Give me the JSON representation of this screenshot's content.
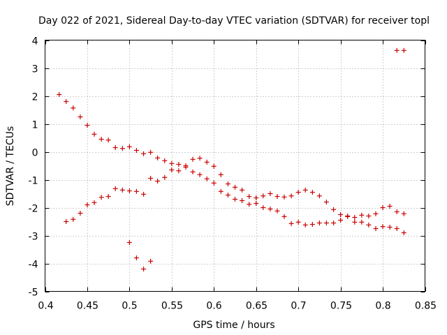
{
  "chart_data": {
    "type": "scatter",
    "title": "Day 022 of 2021, Sidereal Day-to-day VTEC variation (SDTVAR) for receiver topl",
    "xlabel": "GPS time / hours",
    "ylabel": "SDTVAR / TECUs",
    "xlim": [
      0.4,
      0.85
    ],
    "ylim": [
      -5,
      4
    ],
    "grid": true,
    "legend": "none",
    "marker": "plus",
    "color": "#cc0000",
    "xticks": [
      0.4,
      0.45,
      0.5,
      0.55,
      0.6,
      0.65,
      0.7,
      0.75,
      0.8,
      0.85
    ],
    "xtick_labels": [
      "0.4",
      "0.45",
      "0.5",
      "0.55",
      "0.6",
      "0.65",
      "0.7",
      "0.75",
      "0.8",
      "0.85"
    ],
    "yticks": [
      -5,
      -4,
      -3,
      -2,
      -1,
      0,
      1,
      2,
      3,
      4
    ],
    "ytick_labels": [
      "-5",
      "-4",
      "-3",
      "-2",
      "-1",
      "0",
      "1",
      "2",
      "3",
      "4"
    ],
    "series": [
      {
        "name": "SDTVAR",
        "points": [
          [
            0.4167,
            2.05
          ],
          [
            0.425,
            1.8
          ],
          [
            0.4333,
            1.57
          ],
          [
            0.4417,
            1.25
          ],
          [
            0.45,
            0.95
          ],
          [
            0.4583,
            0.63
          ],
          [
            0.4667,
            0.45
          ],
          [
            0.475,
            0.42
          ],
          [
            0.4833,
            0.15
          ],
          [
            0.4917,
            0.12
          ],
          [
            0.5,
            0.18
          ],
          [
            0.5083,
            0.05
          ],
          [
            0.5167,
            -0.07
          ],
          [
            0.525,
            -0.02
          ],
          [
            0.5333,
            -0.22
          ],
          [
            0.5417,
            -0.32
          ],
          [
            0.55,
            -0.42
          ],
          [
            0.5583,
            -0.45
          ],
          [
            0.5667,
            -0.5
          ],
          [
            0.575,
            -0.27
          ],
          [
            0.5833,
            -0.23
          ],
          [
            0.5917,
            -0.37
          ],
          [
            0.6,
            -0.52
          ],
          [
            0.6083,
            -0.82
          ],
          [
            0.6167,
            -1.15
          ],
          [
            0.625,
            -1.27
          ],
          [
            0.6333,
            -1.37
          ],
          [
            0.6417,
            -1.6
          ],
          [
            0.65,
            -1.65
          ],
          [
            0.6583,
            -1.58
          ],
          [
            0.6667,
            -1.5
          ],
          [
            0.675,
            -1.6
          ],
          [
            0.6833,
            -1.62
          ],
          [
            0.6917,
            -1.58
          ],
          [
            0.7,
            -1.45
          ],
          [
            0.7083,
            -1.37
          ],
          [
            0.7167,
            -1.45
          ],
          [
            0.725,
            -1.58
          ],
          [
            0.7333,
            -1.8
          ],
          [
            0.7417,
            -2.07
          ],
          [
            0.75,
            -2.25
          ],
          [
            0.7583,
            -2.32
          ],
          [
            0.7667,
            -2.35
          ],
          [
            0.775,
            -2.27
          ],
          [
            0.7833,
            -2.3
          ],
          [
            0.7917,
            -2.22
          ],
          [
            0.8,
            -2.0
          ],
          [
            0.8083,
            -1.95
          ],
          [
            0.8167,
            -2.15
          ],
          [
            0.825,
            -2.22
          ],
          [
            0.425,
            -2.5
          ],
          [
            0.4333,
            -2.42
          ],
          [
            0.4417,
            -2.2
          ],
          [
            0.45,
            -1.9
          ],
          [
            0.4583,
            -1.82
          ],
          [
            0.4667,
            -1.63
          ],
          [
            0.475,
            -1.6
          ],
          [
            0.4833,
            -1.32
          ],
          [
            0.4917,
            -1.37
          ],
          [
            0.5,
            -1.4
          ],
          [
            0.5083,
            -1.42
          ],
          [
            0.5167,
            -1.52
          ],
          [
            0.525,
            -0.95
          ],
          [
            0.5333,
            -1.05
          ],
          [
            0.5417,
            -0.92
          ],
          [
            0.55,
            -0.65
          ],
          [
            0.5583,
            -0.68
          ],
          [
            0.5667,
            -0.55
          ],
          [
            0.575,
            -0.72
          ],
          [
            0.5833,
            -0.82
          ],
          [
            0.5917,
            -0.97
          ],
          [
            0.6,
            -1.12
          ],
          [
            0.6083,
            -1.42
          ],
          [
            0.6167,
            -1.55
          ],
          [
            0.625,
            -1.7
          ],
          [
            0.6333,
            -1.75
          ],
          [
            0.6417,
            -1.88
          ],
          [
            0.65,
            -1.85
          ],
          [
            0.6583,
            -2.0
          ],
          [
            0.6667,
            -2.05
          ],
          [
            0.675,
            -2.12
          ],
          [
            0.6833,
            -2.32
          ],
          [
            0.6917,
            -2.57
          ],
          [
            0.7,
            -2.52
          ],
          [
            0.7083,
            -2.62
          ],
          [
            0.7167,
            -2.6
          ],
          [
            0.725,
            -2.55
          ],
          [
            0.7333,
            -2.55
          ],
          [
            0.7417,
            -2.55
          ],
          [
            0.75,
            -2.45
          ],
          [
            0.7583,
            -2.3
          ],
          [
            0.7667,
            -2.52
          ],
          [
            0.775,
            -2.52
          ],
          [
            0.7833,
            -2.62
          ],
          [
            0.7917,
            -2.75
          ],
          [
            0.8,
            -2.68
          ],
          [
            0.8083,
            -2.7
          ],
          [
            0.8167,
            -2.75
          ],
          [
            0.825,
            -2.9
          ],
          [
            0.5,
            -3.25
          ],
          [
            0.5083,
            -3.8
          ],
          [
            0.5167,
            -4.2
          ],
          [
            0.525,
            -3.92
          ],
          [
            0.8167,
            3.63
          ],
          [
            0.825,
            3.63
          ]
        ]
      }
    ]
  }
}
